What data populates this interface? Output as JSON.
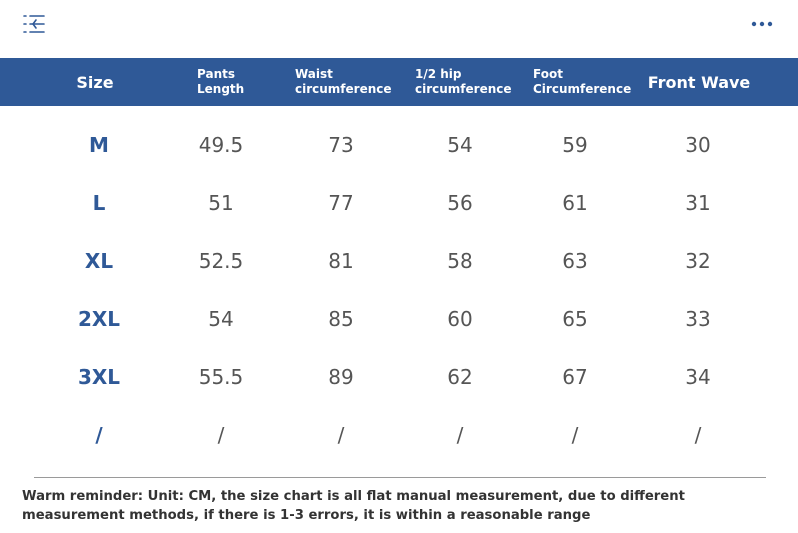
{
  "table": {
    "headers": [
      "Size",
      [
        "Pants",
        "Length"
      ],
      [
        "Waist",
        "circumference"
      ],
      [
        "1/2 hip",
        "circumference"
      ],
      [
        "Foot",
        "Circumference"
      ],
      "Front Wave"
    ],
    "rows": [
      [
        "M",
        "49.5",
        "73",
        "54",
        "59",
        "30"
      ],
      [
        "L",
        "51",
        "77",
        "56",
        "61",
        "31"
      ],
      [
        "XL",
        "52.5",
        "81",
        "58",
        "63",
        "32"
      ],
      [
        "2XL",
        "54",
        "85",
        "60",
        "65",
        "33"
      ],
      [
        "3XL",
        "55.5",
        "89",
        "62",
        "67",
        "34"
      ],
      [
        "/",
        "/",
        "/",
        "/",
        "/",
        "/"
      ]
    ]
  },
  "footnote": "Warm reminder: Unit: CM, the size chart is all flat manual measurement, due to different measurement methods, if there is 1-3 errors, it is within a reasonable range",
  "colors": {
    "header_bg": "#2f5997",
    "size_text": "#2f5997",
    "value_text": "#555555"
  },
  "icons": {
    "top_left": "menu-list-icon",
    "top_right": "more-dots-icon"
  }
}
